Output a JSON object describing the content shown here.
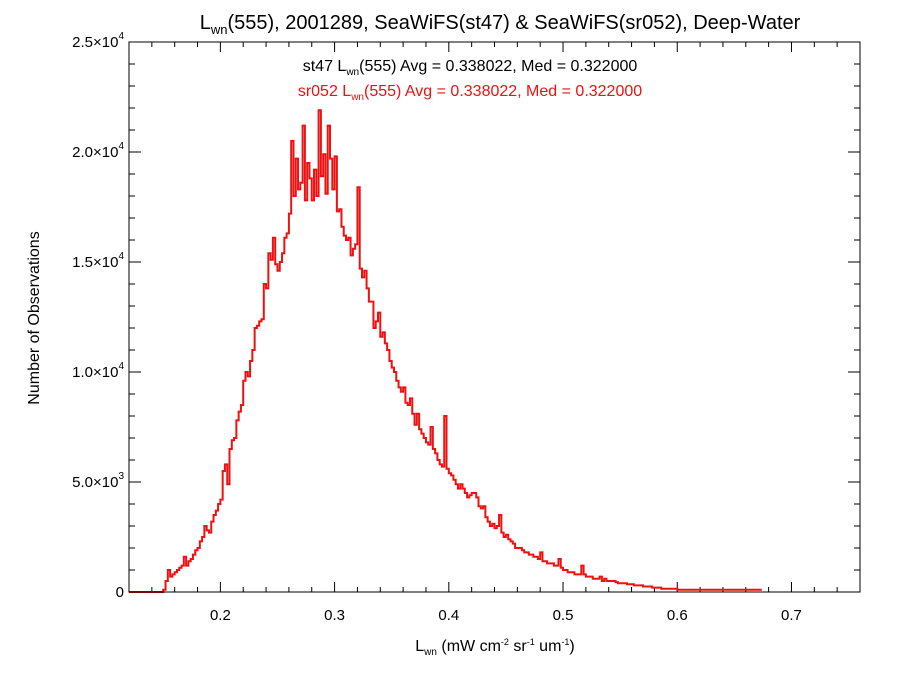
{
  "chart_data": {
    "type": "bar",
    "histogram_style": "step",
    "title": {
      "pre": "L",
      "sub": "wn",
      "post": "(555), 2001289, SeaWiFS(st47) & SeaWiFS(sr052), Deep-Water"
    },
    "xlabel": {
      "pre": "L",
      "sub": "wn",
      "p1": " (mW cm",
      "sup1": "-2",
      "p2": " sr",
      "sup2": "-1",
      "p3": " um",
      "sup3": "-1",
      "p4": ")"
    },
    "ylabel": "Number of Observations",
    "xlim": [
      0.12,
      0.76
    ],
    "ylim": [
      0,
      25000
    ],
    "x_ticks": [
      {
        "value": 0.2,
        "label": "0.2"
      },
      {
        "value": 0.3,
        "label": "0.3"
      },
      {
        "value": 0.4,
        "label": "0.4"
      },
      {
        "value": 0.5,
        "label": "0.5"
      },
      {
        "value": 0.6,
        "label": "0.6"
      },
      {
        "value": 0.7,
        "label": "0.7"
      }
    ],
    "y_ticks": [
      {
        "value": 0,
        "mant": "0",
        "exp": ""
      },
      {
        "value": 5000,
        "mant": "5.0×10",
        "exp": "3"
      },
      {
        "value": 10000,
        "mant": "1.0×10",
        "exp": "4"
      },
      {
        "value": 15000,
        "mant": "1.5×10",
        "exp": "4"
      },
      {
        "value": 20000,
        "mant": "2.0×10",
        "exp": "4"
      },
      {
        "value": 25000,
        "mant": "2.5×10",
        "exp": "4"
      }
    ],
    "annotations": [
      {
        "pre": "st47 L",
        "sub": "wn",
        "post": "(555) Avg = 0.338022, Med = 0.322000",
        "color": "#000000"
      },
      {
        "pre": "sr052 L",
        "sub": "wn",
        "post": "(555) Avg = 0.338022, Med = 0.322000",
        "color": "#ee1111"
      }
    ],
    "series": [
      {
        "name": "sr052",
        "color": "#ee1111",
        "bin_start": 0.12,
        "bin_width": 0.002,
        "values": [
          0,
          0,
          0,
          0,
          0,
          0,
          0,
          0,
          0,
          0,
          0,
          0,
          0,
          0,
          0,
          100,
          500,
          1000,
          700,
          800,
          900,
          1000,
          1100,
          1200,
          1600,
          1200,
          1400,
          1500,
          1700,
          1900,
          2000,
          2300,
          2500,
          3000,
          2800,
          2700,
          3200,
          3500,
          3700,
          4000,
          4200,
          5500,
          5800,
          4900,
          6500,
          6900,
          7000,
          7800,
          8200,
          8500,
          9600,
          10000,
          9800,
          10500,
          11000,
          12000,
          12100,
          12300,
          12400,
          14000,
          13800,
          15400,
          15100,
          16100,
          14900,
          14600,
          15000,
          15400,
          16100,
          16300,
          17200,
          20500,
          18000,
          19700,
          18300,
          18600,
          21200,
          17800,
          19500,
          18800,
          17800,
          19200,
          18000,
          21900,
          18900,
          19900,
          18100,
          21200,
          19700,
          18300,
          19800,
          17300,
          17400,
          16600,
          16200,
          16000,
          16100,
          15300,
          15600,
          15800,
          18400,
          14700,
          14300,
          14600,
          13800,
          13200,
          13200,
          12000,
          12300,
          12700,
          11600,
          11800,
          11300,
          11000,
          10500,
          10200,
          10000,
          9600,
          9300,
          9100,
          9300,
          8600,
          8500,
          8800,
          8100,
          7600,
          8100,
          7400,
          7200,
          7000,
          6800,
          6700,
          7500,
          6500,
          6300,
          6000,
          5800,
          5700,
          8000,
          5600,
          5400,
          5300,
          5100,
          4900,
          4700,
          4900,
          4700,
          4500,
          4300,
          4400,
          4500,
          4500,
          4300,
          3900,
          3800,
          3900,
          3400,
          3200,
          3000,
          3100,
          2900,
          3000,
          3500,
          2700,
          2500,
          2600,
          2400,
          2300,
          2200,
          2000,
          2000,
          2000,
          1900,
          1800,
          1800,
          1700,
          1700,
          1600,
          1600,
          1500,
          1800,
          1400,
          1400,
          1300,
          1300,
          1300,
          1200,
          1200,
          1500,
          1100,
          1000,
          1000,
          900,
          900,
          900,
          800,
          800,
          800,
          1200,
          800,
          700,
          700,
          700,
          600,
          600,
          600,
          700,
          500,
          600,
          500,
          500,
          500,
          500,
          450,
          400,
          400,
          400,
          400,
          350,
          350,
          350,
          300,
          300,
          300,
          300,
          250,
          250,
          250,
          250,
          200,
          200,
          200,
          200,
          150,
          150,
          150,
          150,
          150,
          150,
          150,
          100,
          100,
          100,
          100,
          100,
          100,
          100,
          100,
          100,
          100,
          100,
          100,
          100,
          100,
          100,
          100,
          100,
          100,
          100,
          100,
          100,
          100,
          100,
          100,
          100,
          100,
          100,
          100,
          100,
          100,
          100,
          100,
          100,
          100,
          100,
          100,
          100
        ]
      }
    ]
  }
}
